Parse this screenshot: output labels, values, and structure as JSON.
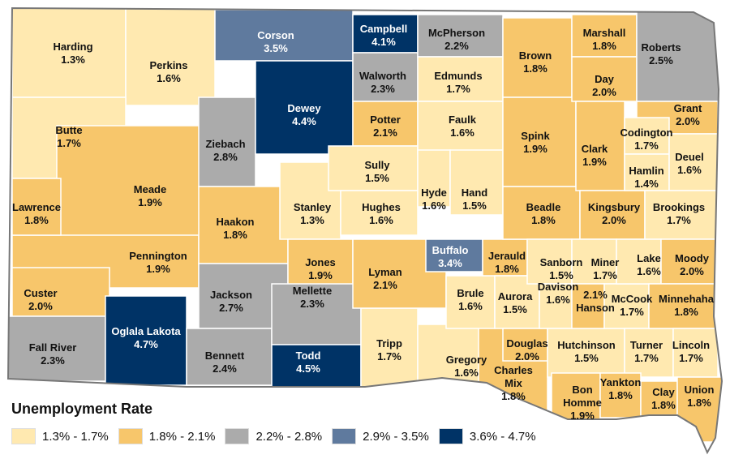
{
  "legend": {
    "title": "Unemployment Rate",
    "classes": [
      {
        "label": "1.3% - 1.7%",
        "color": "#FFE9B0"
      },
      {
        "label": "1.8% - 2.1%",
        "color": "#F7C66B"
      },
      {
        "label": "2.2% - 2.8%",
        "color": "#ABABAB"
      },
      {
        "label": "2.9% - 3.5%",
        "color": "#5F7A9E"
      },
      {
        "label": "3.6% - 4.7%",
        "color": "#003366"
      }
    ]
  },
  "counties": [
    {
      "name": "Harding",
      "rate": "1.3%",
      "class": 0
    },
    {
      "name": "Perkins",
      "rate": "1.6%",
      "class": 0
    },
    {
      "name": "Corson",
      "rate": "3.5%",
      "class": 3
    },
    {
      "name": "Campbell",
      "rate": "4.1%",
      "class": 4
    },
    {
      "name": "McPherson",
      "rate": "2.2%",
      "class": 2
    },
    {
      "name": "Brown",
      "rate": "1.8%",
      "class": 1
    },
    {
      "name": "Marshall",
      "rate": "1.8%",
      "class": 1
    },
    {
      "name": "Roberts",
      "rate": "2.5%",
      "class": 2
    },
    {
      "name": "Butte",
      "rate": "1.7%",
      "class": 0
    },
    {
      "name": "Meade",
      "rate": "1.9%",
      "class": 1
    },
    {
      "name": "Dewey",
      "rate": "4.4%",
      "class": 4
    },
    {
      "name": "Walworth",
      "rate": "2.3%",
      "class": 2
    },
    {
      "name": "Edmunds",
      "rate": "1.7%",
      "class": 0
    },
    {
      "name": "Day",
      "rate": "2.0%",
      "class": 1
    },
    {
      "name": "Potter",
      "rate": "2.1%",
      "class": 1
    },
    {
      "name": "Faulk",
      "rate": "1.6%",
      "class": 0
    },
    {
      "name": "Ziebach",
      "rate": "2.8%",
      "class": 2
    },
    {
      "name": "Spink",
      "rate": "1.9%",
      "class": 1
    },
    {
      "name": "Clark",
      "rate": "1.9%",
      "class": 1
    },
    {
      "name": "Grant",
      "rate": "2.0%",
      "class": 1
    },
    {
      "name": "Codington",
      "rate": "1.7%",
      "class": 0
    },
    {
      "name": "Deuel",
      "rate": "1.6%",
      "class": 0
    },
    {
      "name": "Hamlin",
      "rate": "1.4%",
      "class": 0
    },
    {
      "name": "Lawrence",
      "rate": "1.8%",
      "class": 1
    },
    {
      "name": "Pennington",
      "rate": "1.9%",
      "class": 1
    },
    {
      "name": "Haakon",
      "rate": "1.8%",
      "class": 1
    },
    {
      "name": "Stanley",
      "rate": "1.3%",
      "class": 0
    },
    {
      "name": "Sully",
      "rate": "1.5%",
      "class": 0
    },
    {
      "name": "Hughes",
      "rate": "1.6%",
      "class": 0
    },
    {
      "name": "Hyde",
      "rate": "1.6%",
      "class": 0
    },
    {
      "name": "Hand",
      "rate": "1.5%",
      "class": 0
    },
    {
      "name": "Beadle",
      "rate": "1.8%",
      "class": 1
    },
    {
      "name": "Kingsbury",
      "rate": "2.0%",
      "class": 1
    },
    {
      "name": "Brookings",
      "rate": "1.7%",
      "class": 0
    },
    {
      "name": "Custer",
      "rate": "2.0%",
      "class": 1
    },
    {
      "name": "Jones",
      "rate": "1.9%",
      "class": 1
    },
    {
      "name": "Lyman",
      "rate": "2.1%",
      "class": 1
    },
    {
      "name": "Buffalo",
      "rate": "3.4%",
      "class": 3
    },
    {
      "name": "Jerauld",
      "rate": "1.8%",
      "class": 1
    },
    {
      "name": "Sanborn",
      "rate": "1.5%",
      "class": 0
    },
    {
      "name": "Miner",
      "rate": "1.7%",
      "class": 0
    },
    {
      "name": "Lake",
      "rate": "1.6%",
      "class": 0
    },
    {
      "name": "Moody",
      "rate": "2.0%",
      "class": 1
    },
    {
      "name": "Jackson",
      "rate": "2.7%",
      "class": 2
    },
    {
      "name": "Mellette",
      "rate": "2.3%",
      "class": 2
    },
    {
      "name": "Brule",
      "rate": "1.6%",
      "class": 0
    },
    {
      "name": "Aurora",
      "rate": "1.5%",
      "class": 0
    },
    {
      "name": "Davison",
      "rate": "1.6%",
      "class": 0
    },
    {
      "name": "Hanson",
      "rate": "2.1%",
      "class": 1
    },
    {
      "name": "McCook",
      "rate": "1.7%",
      "class": 0
    },
    {
      "name": "Minnehaha",
      "rate": "1.8%",
      "class": 1
    },
    {
      "name": "Fall River",
      "rate": "2.3%",
      "class": 2
    },
    {
      "name": "Oglala Lakota",
      "rate": "4.7%",
      "class": 4
    },
    {
      "name": "Bennett",
      "rate": "2.4%",
      "class": 2
    },
    {
      "name": "Todd",
      "rate": "4.5%",
      "class": 4
    },
    {
      "name": "Tripp",
      "rate": "1.7%",
      "class": 0
    },
    {
      "name": "Gregory",
      "rate": "1.6%",
      "class": 0
    },
    {
      "name": "Charles Mix",
      "rate": "1.8%",
      "class": 1
    },
    {
      "name": "Douglas",
      "rate": "2.0%",
      "class": 1
    },
    {
      "name": "Hutchinson",
      "rate": "1.5%",
      "class": 0
    },
    {
      "name": "Turner",
      "rate": "1.7%",
      "class": 0
    },
    {
      "name": "Lincoln",
      "rate": "1.7%",
      "class": 0
    },
    {
      "name": "Bon Homme",
      "rate": "1.9%",
      "class": 1
    },
    {
      "name": "Yankton",
      "rate": "1.8%",
      "class": 1
    },
    {
      "name": "Clay",
      "rate": "1.8%",
      "class": 1
    },
    {
      "name": "Union",
      "rate": "1.8%",
      "class": 1
    }
  ]
}
